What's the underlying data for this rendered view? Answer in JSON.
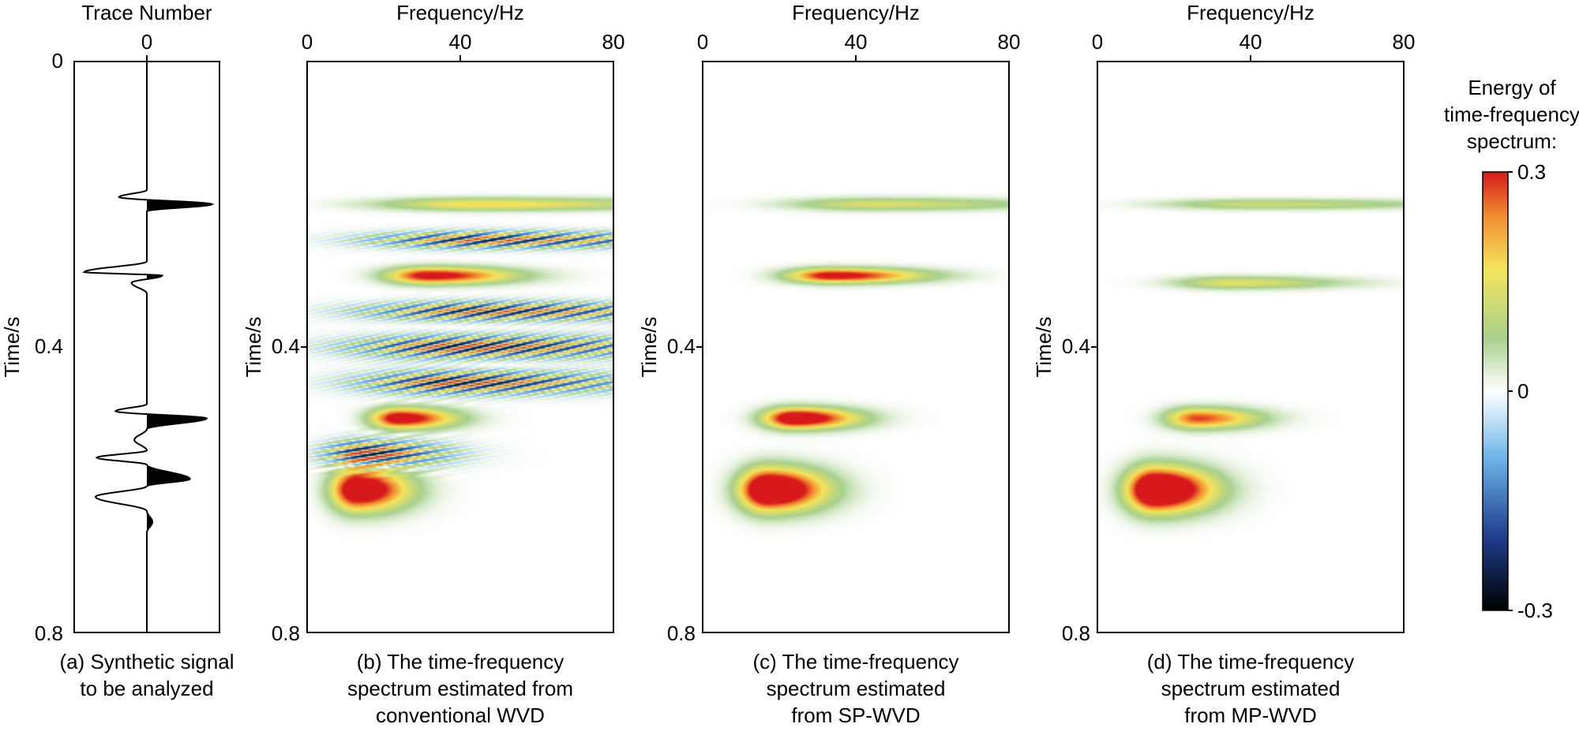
{
  "colors": {
    "positive_max": "#d7191c",
    "positive_mid": "#f4e45a",
    "low_positive": "#a8d08d",
    "zero": "#ffffff",
    "negative_mid": "#6fb5e8",
    "negative_max": "#000000"
  },
  "chart_data": [
    {
      "id": "a",
      "type": "line",
      "xlabel": "Trace Number",
      "ylabel": "Time/s",
      "x_ticks": [
        "0"
      ],
      "y_ticks": [
        "0",
        "0.4",
        "0.8"
      ],
      "xlim": [
        -1,
        1
      ],
      "ylim": [
        0,
        0.8
      ],
      "caption_lines": [
        "(a) Synthetic signal",
        "to be analyzed"
      ],
      "series": [
        {
          "x": [
            0,
            0,
            -0.4,
            0.94,
            0,
            0,
            -0.9,
            0.22,
            -0.22,
            0,
            0,
            -0.45,
            0.86,
            0,
            -0.18,
            0,
            -0.72,
            0,
            0.62,
            0,
            -0.74,
            0,
            0.08,
            0,
            0
          ],
          "y": [
            0,
            0.18,
            0.19,
            0.2,
            0.21,
            0.28,
            0.295,
            0.3,
            0.31,
            0.325,
            0.48,
            0.49,
            0.5,
            0.515,
            0.53,
            0.545,
            0.555,
            0.565,
            0.585,
            0.595,
            0.61,
            0.63,
            0.645,
            0.66,
            0.8
          ]
        }
      ]
    },
    {
      "id": "b",
      "type": "heatmap",
      "xlabel": "Frequency/Hz",
      "ylabel": "Time/s",
      "x_ticks": [
        "0",
        "40",
        "80"
      ],
      "y_ticks": [
        "0.4",
        "0.8"
      ],
      "xlim": [
        0,
        80
      ],
      "ylim": [
        0,
        0.8
      ],
      "caption_lines": [
        "(b) The time-frequency",
        "spectrum estimated from",
        "conventional WVD"
      ],
      "components": [
        {
          "t": 0.2,
          "f": 45,
          "st": 0.006,
          "sf": 35,
          "a": 0.18
        },
        {
          "t": 0.25,
          "f": 45,
          "st": 0.008,
          "sf": 38,
          "a": 0.3,
          "osc": 2.6
        },
        {
          "t": 0.3,
          "f": 32,
          "st": 0.008,
          "sf": 15,
          "a": 0.34
        },
        {
          "t": 0.35,
          "f": 45,
          "st": 0.009,
          "sf": 40,
          "a": 0.3,
          "osc": 3.2
        },
        {
          "t": 0.4,
          "f": 40,
          "st": 0.011,
          "sf": 38,
          "a": 0.32,
          "osc": 3.4
        },
        {
          "t": 0.45,
          "f": 38,
          "st": 0.011,
          "sf": 32,
          "a": 0.32,
          "osc": 3
        },
        {
          "t": 0.5,
          "f": 24,
          "st": 0.01,
          "sf": 10,
          "a": 0.36
        },
        {
          "t": 0.55,
          "f": 15,
          "st": 0.013,
          "sf": 14,
          "a": 0.34,
          "osc": 2.4
        },
        {
          "t": 0.6,
          "f": 13,
          "st": 0.02,
          "sf": 9,
          "a": 0.42
        }
      ]
    },
    {
      "id": "c",
      "type": "heatmap",
      "xlabel": "Frequency/Hz",
      "ylabel": "Time/s",
      "x_ticks": [
        "0",
        "40",
        "80"
      ],
      "y_ticks": [
        "0.4",
        "0.8"
      ],
      "xlim": [
        0,
        80
      ],
      "ylim": [
        0,
        0.8
      ],
      "caption_lines": [
        "(c) The time-frequency",
        "spectrum estimated",
        "from SP-WVD"
      ],
      "components": [
        {
          "t": 0.2,
          "f": 45,
          "st": 0.006,
          "sf": 30,
          "a": 0.14
        },
        {
          "t": 0.3,
          "f": 34,
          "st": 0.007,
          "sf": 16,
          "a": 0.34
        },
        {
          "t": 0.5,
          "f": 24,
          "st": 0.01,
          "sf": 11,
          "a": 0.4
        },
        {
          "t": 0.6,
          "f": 17,
          "st": 0.02,
          "sf": 10,
          "a": 0.48
        }
      ]
    },
    {
      "id": "d",
      "type": "heatmap",
      "xlabel": "Frequency/Hz",
      "ylabel": "Time/s",
      "x_ticks": [
        "0",
        "40",
        "80"
      ],
      "y_ticks": [
        "0.4",
        "0.8"
      ],
      "xlim": [
        0,
        80
      ],
      "ylim": [
        0,
        0.8
      ],
      "caption_lines": [
        "(d) The time-frequency",
        "spectrum estimated",
        "from MP-WVD"
      ],
      "components": [
        {
          "t": 0.2,
          "f": 42,
          "st": 0.005,
          "sf": 34,
          "a": 0.12
        },
        {
          "t": 0.31,
          "f": 35,
          "st": 0.006,
          "sf": 20,
          "a": 0.15
        },
        {
          "t": 0.5,
          "f": 26,
          "st": 0.01,
          "sf": 11,
          "a": 0.28
        },
        {
          "t": 0.6,
          "f": 15,
          "st": 0.021,
          "sf": 10,
          "a": 0.5
        }
      ]
    }
  ],
  "colorbar": {
    "title_lines": [
      "Energy of",
      "time-frequency",
      "spectrum:"
    ],
    "tick_labels": [
      "0.3",
      "0",
      "-0.3"
    ],
    "range": [
      -0.3,
      0.3
    ]
  }
}
